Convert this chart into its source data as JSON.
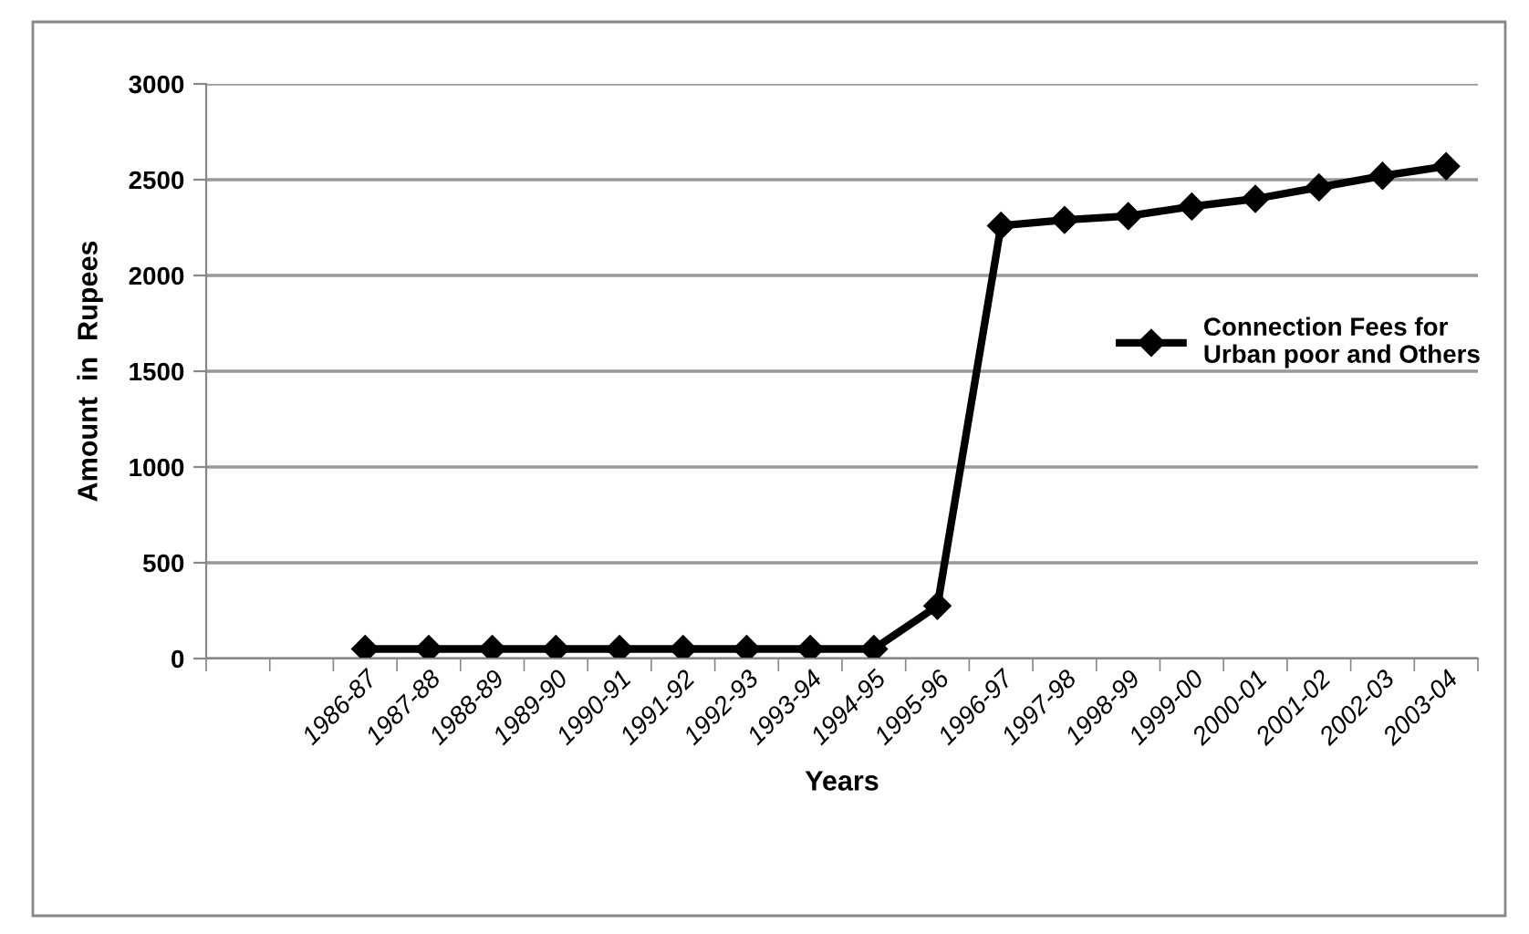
{
  "chart_data": {
    "type": "line",
    "xlabel": "Years",
    "ylabel": "Amount  in  Rupees",
    "categories": [
      null,
      null,
      "1986-87",
      "1987-88",
      "1988-89",
      "1989-90",
      "1990-91",
      "1991-92",
      "1992-93",
      "1993-94",
      "1994-95",
      "1995-96",
      "1996-97",
      "1997-98",
      "1998-99",
      "1999-00",
      "2000-01",
      "2001-02",
      "2002-03",
      "2003-04"
    ],
    "series": [
      {
        "name": "Connection Fees for\nUrban poor and Others",
        "color": "#000000",
        "values": [
          null,
          null,
          50,
          50,
          50,
          50,
          50,
          50,
          50,
          50,
          50,
          275,
          2260,
          2290,
          2310,
          2360,
          2400,
          2460,
          2520,
          2570
        ]
      }
    ],
    "ylim": [
      0,
      3000
    ],
    "yticks": [
      0,
      500,
      1000,
      1500,
      2000,
      2500,
      3000
    ],
    "grid": "y",
    "legend": "right",
    "marker": "diamond",
    "line_style": "solid"
  }
}
